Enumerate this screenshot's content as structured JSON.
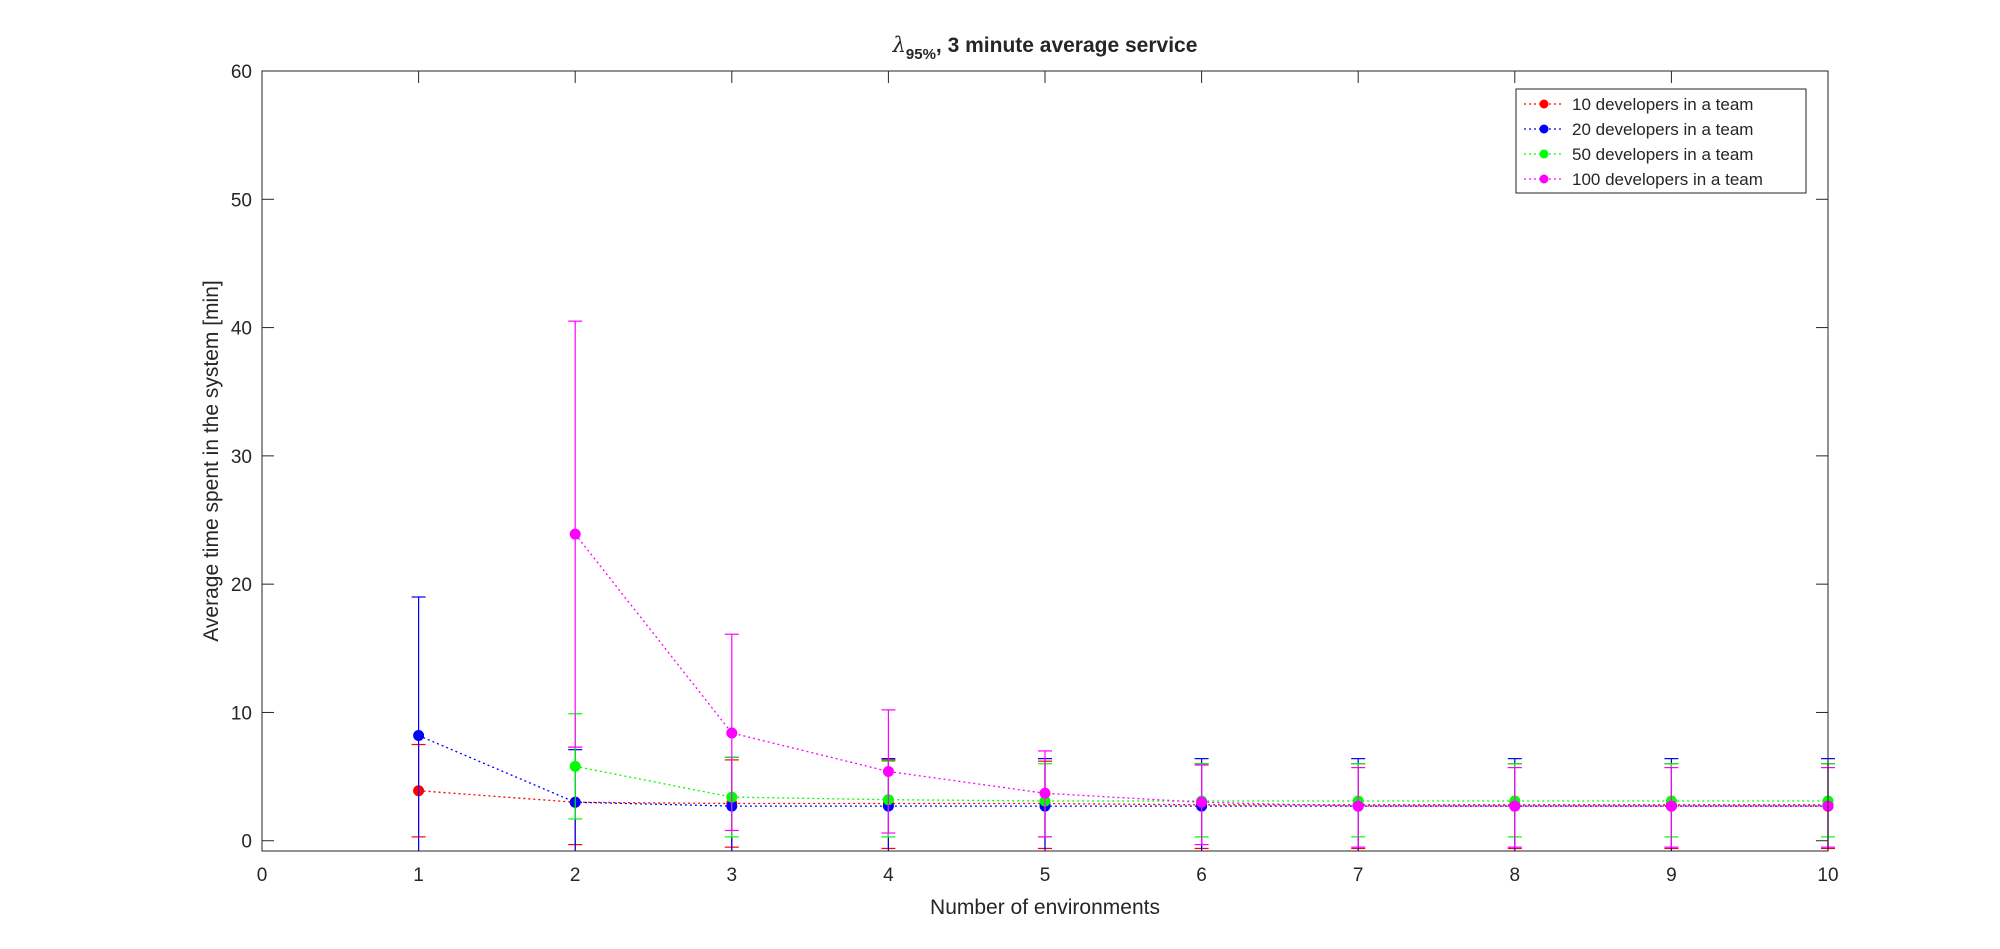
{
  "chart_data": {
    "type": "line",
    "title": {
      "symbol": "λ",
      "subscript": "95%",
      "rest": ", 3 minute average service"
    },
    "xlabel": "Number of environments",
    "ylabel": "Average time spent in the system [min]",
    "xlim": [
      0,
      10
    ],
    "ylim": [
      -0.8,
      60
    ],
    "xticks": [
      0,
      1,
      2,
      3,
      4,
      5,
      6,
      7,
      8,
      9,
      10
    ],
    "yticks": [
      0,
      10,
      20,
      30,
      40,
      50,
      60
    ],
    "grid": false,
    "legend_position": "top-right",
    "error_bars": true,
    "x": [
      1,
      2,
      3,
      4,
      5,
      6,
      7,
      8,
      9,
      10
    ],
    "series": [
      {
        "name": "10 developers in a team",
        "color": "#ff0000",
        "values": [
          3.9,
          3.0,
          2.9,
          2.9,
          2.9,
          2.8,
          2.8,
          2.8,
          2.8,
          2.8
        ],
        "lower": [
          0.3,
          -0.3,
          -0.5,
          -0.6,
          -0.6,
          -0.6,
          -0.6,
          -0.6,
          -0.6,
          -0.6
        ],
        "upper": [
          7.5,
          7.3,
          6.3,
          6.3,
          6.2,
          6.0,
          6.0,
          6.0,
          6.0,
          6.0
        ]
      },
      {
        "name": "20 developers in a team",
        "color": "#0000ff",
        "values": [
          8.2,
          3.0,
          2.7,
          2.7,
          2.7,
          2.7,
          2.7,
          2.7,
          2.7,
          2.7
        ],
        "lower": [
          -0.9,
          -0.9,
          -0.9,
          -0.9,
          -0.9,
          -0.9,
          -0.9,
          -0.9,
          -0.9,
          -0.9
        ],
        "upper": [
          19.0,
          7.1,
          6.5,
          6.4,
          6.4,
          6.4,
          6.4,
          6.4,
          6.4,
          6.4
        ]
      },
      {
        "name": "50 developers in a team",
        "color": "#00ff00",
        "values": [
          null,
          5.8,
          3.4,
          3.2,
          3.1,
          3.1,
          3.1,
          3.1,
          3.1,
          3.1
        ],
        "lower": [
          null,
          1.7,
          0.3,
          0.3,
          0.3,
          0.3,
          0.3,
          0.3,
          0.3,
          0.3
        ],
        "upper": [
          null,
          9.9,
          6.5,
          6.2,
          6.0,
          6.0,
          6.0,
          6.0,
          6.0,
          6.0
        ]
      },
      {
        "name": "100 developers in a team",
        "color": "#ff00ff",
        "values": [
          null,
          23.9,
          8.4,
          5.4,
          3.7,
          3.0,
          2.7,
          2.7,
          2.7,
          2.7
        ],
        "lower": [
          null,
          7.3,
          0.8,
          0.6,
          0.3,
          -0.3,
          -0.5,
          -0.5,
          -0.5,
          -0.5
        ],
        "upper": [
          null,
          40.5,
          16.1,
          10.2,
          7.0,
          5.9,
          5.7,
          5.7,
          5.7,
          5.7
        ]
      }
    ]
  }
}
